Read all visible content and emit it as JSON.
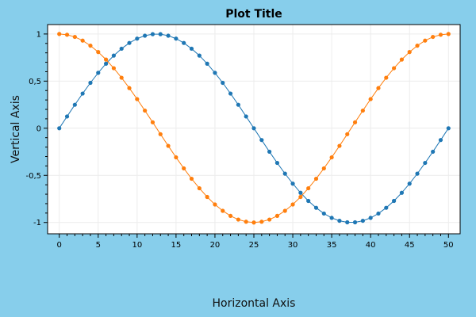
{
  "chart_data": {
    "type": "line",
    "title": "Plot Title",
    "xlabel": "Horizontal Axis",
    "ylabel": "Vertical Axis",
    "xlim": [
      -1.5,
      51.5
    ],
    "ylim": [
      -1.12,
      1.1
    ],
    "x_ticks": [
      0,
      5,
      10,
      15,
      20,
      25,
      30,
      35,
      40,
      45,
      50
    ],
    "x_tick_labels": [
      "0",
      "5",
      "10",
      "15",
      "20",
      "25",
      "30",
      "35",
      "40",
      "45",
      "50"
    ],
    "y_ticks": [
      1,
      0.5,
      0,
      -0.5,
      -1
    ],
    "y_tick_labels": [
      "1",
      "0,5",
      "0",
      "-0,5",
      "-1"
    ],
    "grid": true,
    "legend": "none",
    "x": [
      0,
      1,
      2,
      3,
      4,
      5,
      6,
      7,
      8,
      9,
      10,
      11,
      12,
      13,
      14,
      15,
      16,
      17,
      18,
      19,
      20,
      21,
      22,
      23,
      24,
      25,
      26,
      27,
      28,
      29,
      30,
      31,
      32,
      33,
      34,
      35,
      36,
      37,
      38,
      39,
      40,
      41,
      42,
      43,
      44,
      45,
      46,
      47,
      48,
      49,
      50
    ],
    "series": [
      {
        "color": "#1f77b4",
        "values": [
          0,
          0.125,
          0.249,
          0.368,
          0.482,
          0.588,
          0.685,
          0.771,
          0.844,
          0.905,
          0.951,
          0.982,
          0.998,
          0.998,
          0.982,
          0.951,
          0.905,
          0.844,
          0.771,
          0.685,
          0.588,
          0.482,
          0.368,
          0.249,
          0.125,
          0,
          -0.125,
          -0.249,
          -0.368,
          -0.482,
          -0.588,
          -0.685,
          -0.771,
          -0.844,
          -0.905,
          -0.951,
          -0.982,
          -0.998,
          -0.998,
          -0.982,
          -0.951,
          -0.905,
          -0.844,
          -0.771,
          -0.685,
          -0.588,
          -0.482,
          -0.368,
          -0.249,
          -0.125,
          0
        ]
      },
      {
        "color": "#ff7f0e",
        "values": [
          1,
          0.992,
          0.969,
          0.93,
          0.876,
          0.809,
          0.729,
          0.637,
          0.536,
          0.426,
          0.309,
          0.187,
          0.063,
          -0.063,
          -0.187,
          -0.309,
          -0.426,
          -0.536,
          -0.637,
          -0.729,
          -0.809,
          -0.876,
          -0.93,
          -0.969,
          -0.992,
          -1,
          -0.992,
          -0.969,
          -0.93,
          -0.876,
          -0.809,
          -0.729,
          -0.637,
          -0.536,
          -0.426,
          -0.309,
          -0.187,
          -0.063,
          0.063,
          0.187,
          0.309,
          0.426,
          0.536,
          0.637,
          0.729,
          0.809,
          0.876,
          0.93,
          0.969,
          0.992,
          1
        ]
      }
    ]
  }
}
